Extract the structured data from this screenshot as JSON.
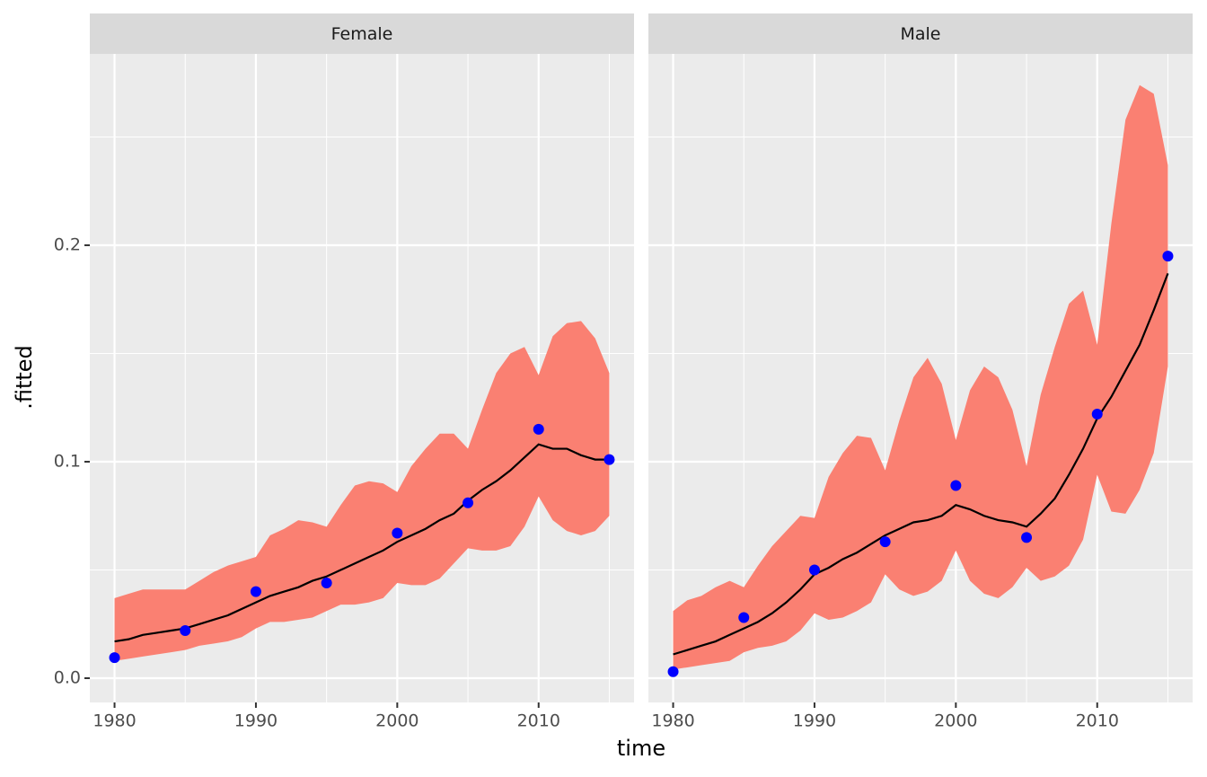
{
  "chart_data": [
    {
      "type": "line",
      "title": "Female",
      "xlabel": "time",
      "ylabel": ".fitted",
      "xlim": [
        1978.25,
        2016.75
      ],
      "xticks": [
        1980,
        1990,
        2000,
        2010
      ],
      "ylim": [
        -0.0112,
        0.2884
      ],
      "yticks": [
        {
          "value": 0,
          "label": "0.0"
        },
        0.1,
        0.2
      ],
      "grid": true,
      "x": [
        1980,
        1981,
        1982,
        1983,
        1984,
        1985,
        1986,
        1987,
        1988,
        1989,
        1990,
        1991,
        1992,
        1993,
        1994,
        1995,
        1996,
        1997,
        1998,
        1999,
        2000,
        2001,
        2002,
        2003,
        2004,
        2005,
        2006,
        2007,
        2008,
        2009,
        2010,
        2011,
        2012,
        2013,
        2014,
        2015
      ],
      "band": {
        "color": "#fa8072",
        "upper": [
          0.037,
          0.039,
          0.041,
          0.041,
          0.041,
          0.041,
          0.045,
          0.049,
          0.052,
          0.054,
          0.056,
          0.066,
          0.069,
          0.073,
          0.072,
          0.07,
          0.08,
          0.089,
          0.091,
          0.09,
          0.086,
          0.098,
          0.106,
          0.113,
          0.113,
          0.106,
          0.124,
          0.141,
          0.15,
          0.153,
          0.14,
          0.158,
          0.164,
          0.165,
          0.157,
          0.141
        ],
        "lower": [
          0.008,
          0.009,
          0.01,
          0.011,
          0.012,
          0.013,
          0.015,
          0.016,
          0.017,
          0.019,
          0.023,
          0.026,
          0.026,
          0.027,
          0.028,
          0.031,
          0.034,
          0.034,
          0.035,
          0.037,
          0.044,
          0.043,
          0.043,
          0.046,
          0.053,
          0.06,
          0.059,
          0.059,
          0.061,
          0.07,
          0.084,
          0.073,
          0.068,
          0.066,
          0.068,
          0.075
        ]
      },
      "line": {
        "color": "#000000",
        "values": [
          0.017,
          0.018,
          0.02,
          0.021,
          0.022,
          0.023,
          0.025,
          0.027,
          0.029,
          0.032,
          0.035,
          0.038,
          0.04,
          0.042,
          0.045,
          0.047,
          0.05,
          0.053,
          0.056,
          0.059,
          0.063,
          0.066,
          0.069,
          0.073,
          0.076,
          0.082,
          0.087,
          0.091,
          0.096,
          0.102,
          0.108,
          0.106,
          0.106,
          0.103,
          0.101,
          0.101
        ]
      },
      "points": {
        "color": "#0000ff",
        "x": [
          1980,
          1985,
          1990,
          1995,
          2000,
          2005,
          2010,
          2015
        ],
        "values": [
          0.0095,
          0.022,
          0.04,
          0.044,
          0.067,
          0.081,
          0.115,
          0.101
        ]
      }
    },
    {
      "type": "line",
      "title": "Male",
      "xlim": [
        1978.25,
        2016.75
      ],
      "xticks": [
        1980,
        1990,
        2000,
        2010
      ],
      "grid": true,
      "x": [
        1980,
        1981,
        1982,
        1983,
        1984,
        1985,
        1986,
        1987,
        1988,
        1989,
        1990,
        1991,
        1992,
        1993,
        1994,
        1995,
        1996,
        1997,
        1998,
        1999,
        2000,
        2001,
        2002,
        2003,
        2004,
        2005,
        2006,
        2007,
        2008,
        2009,
        2010,
        2011,
        2012,
        2013,
        2014,
        2015
      ],
      "band": {
        "color": "#fa8072",
        "upper": [
          0.031,
          0.036,
          0.038,
          0.042,
          0.045,
          0.042,
          0.052,
          0.061,
          0.068,
          0.075,
          0.074,
          0.093,
          0.104,
          0.112,
          0.111,
          0.096,
          0.119,
          0.139,
          0.148,
          0.136,
          0.11,
          0.133,
          0.144,
          0.139,
          0.124,
          0.098,
          0.131,
          0.153,
          0.173,
          0.179,
          0.154,
          0.21,
          0.258,
          0.274,
          0.27,
          0.237
        ],
        "lower": [
          0.004,
          0.005,
          0.006,
          0.007,
          0.008,
          0.012,
          0.014,
          0.015,
          0.017,
          0.022,
          0.03,
          0.027,
          0.028,
          0.031,
          0.035,
          0.048,
          0.041,
          0.038,
          0.04,
          0.045,
          0.059,
          0.045,
          0.039,
          0.037,
          0.042,
          0.051,
          0.045,
          0.047,
          0.052,
          0.064,
          0.094,
          0.077,
          0.076,
          0.087,
          0.104,
          0.144
        ]
      },
      "line": {
        "color": "#000000",
        "values": [
          0.011,
          0.013,
          0.015,
          0.017,
          0.02,
          0.023,
          0.026,
          0.03,
          0.035,
          0.041,
          0.048,
          0.051,
          0.055,
          0.058,
          0.062,
          0.066,
          0.069,
          0.072,
          0.073,
          0.075,
          0.08,
          0.078,
          0.075,
          0.073,
          0.072,
          0.07,
          0.076,
          0.083,
          0.094,
          0.106,
          0.12,
          0.13,
          0.142,
          0.154,
          0.17,
          0.187
        ]
      },
      "points": {
        "color": "#0000ff",
        "x": [
          1980,
          1985,
          1990,
          1995,
          2000,
          2005,
          2010,
          2015
        ],
        "values": [
          0.003,
          0.028,
          0.05,
          0.063,
          0.089,
          0.065,
          0.122,
          0.195
        ]
      }
    }
  ]
}
